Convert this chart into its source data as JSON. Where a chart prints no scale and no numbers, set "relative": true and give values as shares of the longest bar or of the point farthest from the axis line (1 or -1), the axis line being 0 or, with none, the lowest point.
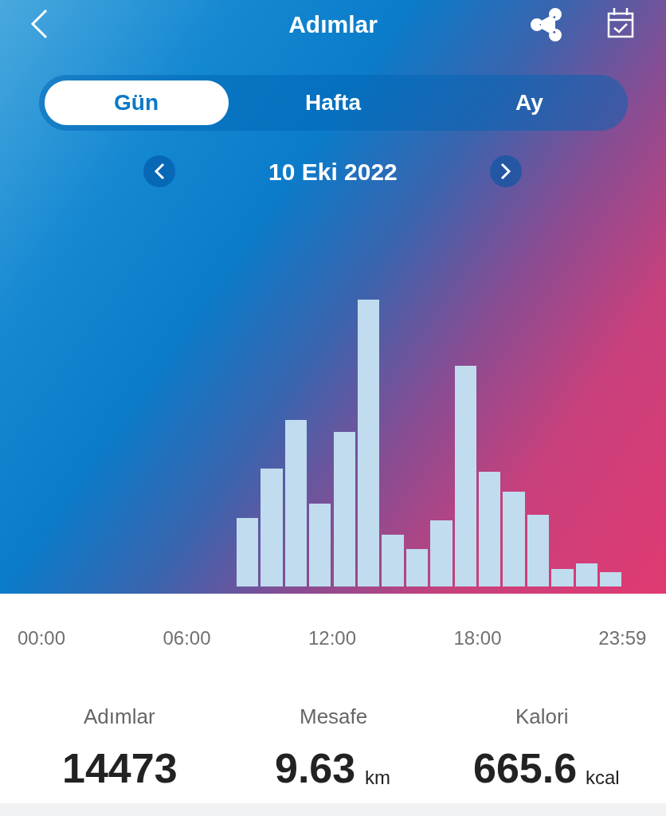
{
  "chart_data": {
    "type": "bar",
    "title": "Adımlar",
    "subtitle": "10 Eki 2022",
    "x": [
      8.5,
      9.5,
      10.5,
      11.5,
      12.5,
      13.5,
      14.5,
      15.5,
      16.5,
      17.5,
      18.5,
      19.5,
      20.5,
      21.5,
      22.5,
      23.5
    ],
    "values": [
      0.24,
      0.41,
      0.58,
      0.29,
      0.54,
      1,
      0.18,
      0.13,
      0.23,
      0.77,
      0.4,
      0.33,
      0.25,
      0.06,
      0.08,
      0.05
    ],
    "relative": true,
    "color": "#c0dcee",
    "xlim": [
      0,
      24
    ],
    "xticks": [
      {
        "value": 0,
        "label": "00:00"
      },
      {
        "value": 6,
        "label": "06:00"
      },
      {
        "value": 12,
        "label": "12:00"
      },
      {
        "value": 18,
        "label": "18:00"
      },
      {
        "value": 23.98,
        "label": "23:59"
      }
    ],
    "tick_labels": "x",
    "annotations": [
      "Gün",
      "Hafta",
      "Ay",
      "Adımlar",
      "14473",
      "Mesafe",
      "9.63",
      "km",
      "Kalori",
      "665.6",
      "kcal"
    ]
  }
}
